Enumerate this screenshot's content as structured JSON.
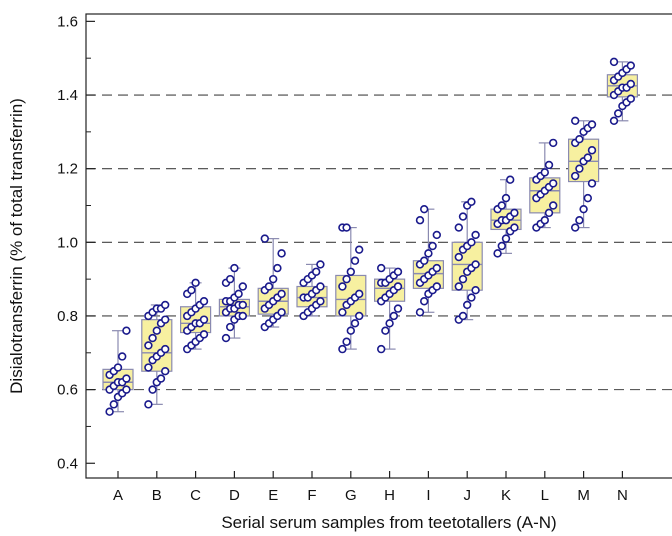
{
  "chart_data": {
    "type": "box",
    "xlabel": "Serial serum samples from teetotallers (A-N)",
    "ylabel": "Disialotransferrin (% of total transferrin)",
    "ylim": [
      0.36,
      1.62
    ],
    "yticks": [
      0.4,
      0.6,
      0.8,
      1.0,
      1.2,
      1.4,
      1.6
    ],
    "ytick_labels": [
      "0.4",
      "0.6",
      "0.8",
      "1.0",
      "1.2",
      "1.4",
      "1.6"
    ],
    "dashed_gridlines": [
      0.6,
      0.8,
      1.0,
      1.2,
      1.4
    ],
    "colors": {
      "box_fill": "#f7f0a0",
      "box_stroke": "#8a8ab0",
      "point": "#1a1a8c",
      "grid": "#444444"
    },
    "categories": [
      "A",
      "B",
      "C",
      "D",
      "E",
      "F",
      "G",
      "H",
      "I",
      "J",
      "K",
      "L",
      "M",
      "N"
    ],
    "boxes": [
      {
        "label": "A",
        "min": 0.54,
        "q1": 0.6,
        "median": 0.62,
        "q3": 0.655,
        "max": 0.76,
        "points": [
          0.54,
          0.56,
          0.58,
          0.59,
          0.6,
          0.6,
          0.61,
          0.62,
          0.62,
          0.63,
          0.64,
          0.65,
          0.66,
          0.69,
          0.76
        ]
      },
      {
        "label": "B",
        "min": 0.56,
        "q1": 0.65,
        "median": 0.7,
        "q3": 0.79,
        "max": 0.83,
        "points": [
          0.56,
          0.6,
          0.62,
          0.63,
          0.65,
          0.66,
          0.68,
          0.69,
          0.7,
          0.71,
          0.72,
          0.74,
          0.76,
          0.78,
          0.79,
          0.8,
          0.81,
          0.82,
          0.82,
          0.83
        ]
      },
      {
        "label": "C",
        "min": 0.71,
        "q1": 0.755,
        "median": 0.78,
        "q3": 0.825,
        "max": 0.89,
        "points": [
          0.71,
          0.72,
          0.73,
          0.74,
          0.75,
          0.76,
          0.77,
          0.78,
          0.78,
          0.79,
          0.8,
          0.81,
          0.82,
          0.83,
          0.84,
          0.86,
          0.87,
          0.89
        ]
      },
      {
        "label": "D",
        "min": 0.74,
        "q1": 0.8,
        "median": 0.825,
        "q3": 0.845,
        "max": 0.93,
        "points": [
          0.74,
          0.77,
          0.79,
          0.8,
          0.8,
          0.81,
          0.82,
          0.82,
          0.83,
          0.83,
          0.84,
          0.84,
          0.85,
          0.86,
          0.88,
          0.89,
          0.9,
          0.93
        ]
      },
      {
        "label": "E",
        "min": 0.77,
        "q1": 0.805,
        "median": 0.84,
        "q3": 0.875,
        "max": 1.01,
        "points": [
          0.77,
          0.78,
          0.79,
          0.8,
          0.81,
          0.82,
          0.83,
          0.84,
          0.85,
          0.86,
          0.87,
          0.88,
          0.9,
          0.93,
          0.97,
          1.01
        ]
      },
      {
        "label": "F",
        "min": 0.8,
        "q1": 0.825,
        "median": 0.85,
        "q3": 0.88,
        "max": 0.94,
        "points": [
          0.8,
          0.81,
          0.82,
          0.83,
          0.84,
          0.85,
          0.85,
          0.86,
          0.87,
          0.88,
          0.89,
          0.9,
          0.91,
          0.92,
          0.94
        ]
      },
      {
        "label": "G",
        "min": 0.71,
        "q1": 0.8,
        "median": 0.845,
        "q3": 0.91,
        "max": 1.04,
        "points": [
          0.71,
          0.73,
          0.76,
          0.78,
          0.8,
          0.81,
          0.83,
          0.84,
          0.85,
          0.86,
          0.88,
          0.9,
          0.92,
          0.95,
          0.98,
          1.04,
          1.04
        ]
      },
      {
        "label": "H",
        "min": 0.71,
        "q1": 0.84,
        "median": 0.875,
        "q3": 0.9,
        "max": 0.93,
        "points": [
          0.71,
          0.76,
          0.78,
          0.8,
          0.82,
          0.84,
          0.85,
          0.86,
          0.87,
          0.88,
          0.89,
          0.89,
          0.9,
          0.91,
          0.92,
          0.93
        ]
      },
      {
        "label": "I",
        "min": 0.81,
        "q1": 0.875,
        "median": 0.915,
        "q3": 0.95,
        "max": 1.09,
        "points": [
          0.81,
          0.84,
          0.86,
          0.87,
          0.88,
          0.89,
          0.9,
          0.91,
          0.92,
          0.93,
          0.94,
          0.95,
          0.97,
          0.99,
          1.02,
          1.06,
          1.09
        ]
      },
      {
        "label": "J",
        "min": 0.79,
        "q1": 0.87,
        "median": 0.94,
        "q3": 1.0,
        "max": 1.11,
        "points": [
          0.79,
          0.8,
          0.83,
          0.85,
          0.87,
          0.88,
          0.9,
          0.92,
          0.93,
          0.94,
          0.96,
          0.98,
          0.99,
          1.0,
          1.02,
          1.04,
          1.07,
          1.1,
          1.11
        ]
      },
      {
        "label": "K",
        "min": 0.97,
        "q1": 1.035,
        "median": 1.06,
        "q3": 1.09,
        "max": 1.17,
        "points": [
          0.97,
          0.99,
          1.01,
          1.03,
          1.04,
          1.05,
          1.06,
          1.06,
          1.07,
          1.08,
          1.09,
          1.1,
          1.12,
          1.17
        ]
      },
      {
        "label": "L",
        "min": 1.04,
        "q1": 1.08,
        "median": 1.14,
        "q3": 1.175,
        "max": 1.27,
        "points": [
          1.04,
          1.05,
          1.06,
          1.08,
          1.1,
          1.12,
          1.13,
          1.14,
          1.15,
          1.16,
          1.17,
          1.18,
          1.19,
          1.21,
          1.27
        ]
      },
      {
        "label": "M",
        "min": 1.04,
        "q1": 1.165,
        "median": 1.22,
        "q3": 1.28,
        "max": 1.33,
        "points": [
          1.04,
          1.06,
          1.09,
          1.12,
          1.16,
          1.18,
          1.2,
          1.22,
          1.23,
          1.25,
          1.27,
          1.28,
          1.3,
          1.31,
          1.32,
          1.33
        ]
      },
      {
        "label": "N",
        "min": 1.33,
        "q1": 1.395,
        "median": 1.425,
        "q3": 1.455,
        "max": 1.49,
        "points": [
          1.33,
          1.35,
          1.37,
          1.38,
          1.39,
          1.4,
          1.41,
          1.42,
          1.42,
          1.43,
          1.44,
          1.45,
          1.46,
          1.47,
          1.48,
          1.49
        ]
      }
    ]
  }
}
